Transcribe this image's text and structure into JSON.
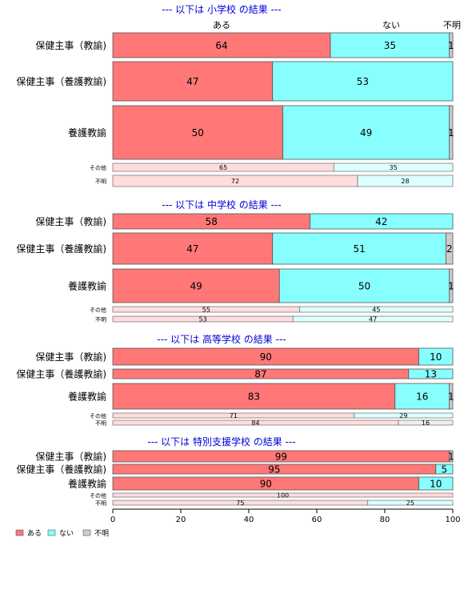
{
  "chart_data": {
    "type": "bar",
    "orientation": "horizontal",
    "stacked": true,
    "xlim": [
      0,
      100
    ],
    "x_ticks": [
      0,
      20,
      40,
      60,
      80,
      100
    ],
    "category_labels": [
      "ある",
      "ない",
      "不明"
    ],
    "legend": {
      "placement": "bottom-left",
      "items": [
        {
          "label": "ある",
          "color": "#ff7777"
        },
        {
          "label": "ない",
          "color": "#88ffff"
        },
        {
          "label": "不明",
          "color": "#cccccc"
        }
      ]
    },
    "colors": {
      "ある": "#ff7777",
      "ない": "#88ffff",
      "不明": "#cccccc"
    },
    "panels": [
      {
        "title": "--- 以下は 小学校 の結果 ---",
        "rows": [
          {
            "label": "保健主事（教諭)",
            "values": [
              64,
              35,
              1
            ]
          },
          {
            "label": "保健主事（養護教諭)",
            "values": [
              47,
              53,
              0
            ]
          },
          {
            "label": "養護教諭",
            "values": [
              50,
              49,
              1
            ]
          },
          {
            "label": "その他",
            "values": [
              65,
              35,
              0
            ]
          },
          {
            "label": "不明",
            "values": [
              72,
              28,
              0
            ]
          }
        ]
      },
      {
        "title": "--- 以下は 中学校 の結果 ---",
        "rows": [
          {
            "label": "保健主事（教諭)",
            "values": [
              58,
              42,
              0
            ]
          },
          {
            "label": "保健主事（養護教諭)",
            "values": [
              47,
              51,
              2
            ]
          },
          {
            "label": "養護教諭",
            "values": [
              49,
              50,
              1
            ]
          },
          {
            "label": "その他",
            "values": [
              55,
              45,
              0
            ]
          },
          {
            "label": "不明",
            "values": [
              53,
              47,
              0
            ]
          }
        ]
      },
      {
        "title": "--- 以下は 高等学校 の結果 ---",
        "rows": [
          {
            "label": "保健主事（教諭)",
            "values": [
              90,
              10,
              0
            ]
          },
          {
            "label": "保健主事（養護教諭)",
            "values": [
              87,
              13,
              0
            ]
          },
          {
            "label": "養護教諭",
            "values": [
              83,
              16,
              1
            ]
          },
          {
            "label": "その他",
            "values": [
              71,
              29,
              0
            ]
          },
          {
            "label": "不明",
            "values": [
              84,
              0,
              16
            ]
          }
        ]
      },
      {
        "title": "--- 以下は 特別支援学校 の結果 ---",
        "rows": [
          {
            "label": "保健主事（教諭)",
            "values": [
              99,
              0,
              1
            ]
          },
          {
            "label": "保健主事（養護教諭)",
            "values": [
              95,
              5,
              0
            ]
          },
          {
            "label": "養護教諭",
            "values": [
              90,
              10,
              0
            ]
          },
          {
            "label": "その他",
            "values": [
              100,
              0,
              0
            ]
          },
          {
            "label": "不明",
            "values": [
              75,
              25,
              0
            ]
          }
        ]
      }
    ]
  }
}
